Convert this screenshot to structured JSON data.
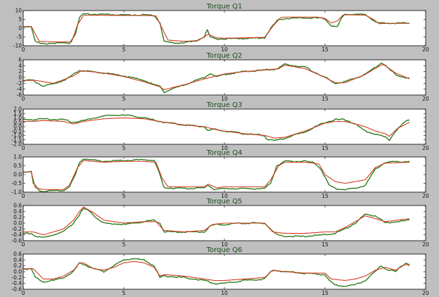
{
  "chart_data": [
    {
      "type": "line",
      "title": "Torque Q1",
      "xlim": [
        0,
        20
      ],
      "ylim": [
        -10,
        10
      ],
      "xticks": [
        0,
        5,
        10,
        15,
        20
      ],
      "yticks": [
        -10,
        -5,
        0,
        5,
        10
      ],
      "grid": false,
      "series": [
        {
          "color": "#2e7d1f",
          "x": [
            0,
            0.4,
            0.6,
            0.9,
            1.5,
            2.3,
            2.6,
            2.8,
            3.0,
            4.0,
            5.0,
            6.0,
            6.5,
            6.8,
            7.0,
            7.5,
            8.0,
            8.5,
            9.0,
            9.15,
            9.3,
            9.5,
            10.0,
            11.0,
            12.0,
            12.3,
            12.7,
            13.0,
            14.0,
            14.5,
            15.0,
            15.3,
            15.6,
            15.8,
            16.0,
            16.5,
            17.0,
            17.4,
            17.6,
            18.0,
            18.5,
            19.2
          ],
          "y": [
            1,
            1,
            -7.5,
            -9.0,
            -8.5,
            -8.5,
            -3.0,
            6.0,
            8.0,
            7.8,
            7.5,
            7.5,
            7.3,
            3.0,
            -7.5,
            -8.5,
            -8.2,
            -7.6,
            -5.0,
            -1.0,
            -5.0,
            -6.0,
            -6.0,
            -5.8,
            -5.5,
            0.0,
            5.0,
            5.5,
            5.8,
            5.8,
            5.5,
            1.5,
            0.5,
            5.0,
            8.0,
            7.8,
            7.7,
            4.5,
            3.0,
            3.0,
            2.8,
            3.0
          ]
        },
        {
          "color": "#d43a20",
          "x": [
            0,
            0.4,
            0.8,
            1.5,
            2.4,
            2.7,
            3.0,
            4.0,
            5.0,
            6.0,
            6.6,
            6.9,
            7.2,
            8.0,
            8.7,
            9.2,
            9.6,
            10.0,
            11.0,
            12.0,
            12.4,
            12.8,
            13.0,
            14.0,
            14.6,
            15.0,
            15.3,
            15.6,
            15.9,
            16.2,
            17.0,
            17.4,
            17.7,
            18.0,
            19.2
          ],
          "y": [
            1,
            1,
            -7.5,
            -7.8,
            -7.8,
            2.0,
            7.3,
            7.3,
            7.2,
            7.2,
            7.0,
            0.0,
            -6.8,
            -7.5,
            -7.0,
            -3.5,
            -5.5,
            -5.7,
            -5.5,
            -5.2,
            1.0,
            6.0,
            6.3,
            6.3,
            6.3,
            5.5,
            3.0,
            4.0,
            7.5,
            7.6,
            7.4,
            5.0,
            2.5,
            2.7,
            2.7
          ]
        }
      ]
    },
    {
      "type": "line",
      "title": "Torque Q2",
      "xlim": [
        0,
        20
      ],
      "ylim": [
        -6,
        6
      ],
      "xticks": [
        0,
        5,
        10,
        15,
        20
      ],
      "yticks": [
        -6,
        -4,
        -2,
        0,
        2,
        4,
        6
      ],
      "grid": false,
      "series": [
        {
          "color": "#2e7d1f",
          "x": [
            0,
            0.5,
            0.6,
            1.0,
            1.5,
            2.0,
            2.4,
            2.8,
            3.0,
            4.0,
            5.0,
            6.0,
            6.5,
            6.8,
            7.0,
            8.0,
            9.0,
            9.3,
            9.6,
            10.0,
            11.0,
            12.0,
            12.5,
            12.8,
            13.0,
            14.0,
            15.0,
            15.5,
            16.0,
            17.0,
            17.5,
            17.8,
            18.0,
            18.5,
            19.2
          ],
          "y": [
            -1.0,
            -1.0,
            -1.5,
            -3.0,
            -2.2,
            -1.0,
            0.5,
            2.5,
            2.2,
            1.5,
            0.5,
            -1.0,
            -2.5,
            -3.0,
            -5.0,
            -2.5,
            0.0,
            1.5,
            0.2,
            1.0,
            2.0,
            2.5,
            2.8,
            3.5,
            4.5,
            3.5,
            0.0,
            -2.0,
            -1.5,
            1.0,
            3.5,
            5.0,
            4.0,
            1.0,
            -0.5
          ]
        },
        {
          "color": "#d43a20",
          "x": [
            0,
            0.6,
            1.5,
            2.5,
            2.9,
            4.0,
            5.0,
            6.0,
            6.8,
            7.0,
            8.0,
            9.0,
            10.0,
            11.0,
            12.0,
            12.7,
            13.0,
            14.0,
            15.0,
            15.5,
            16.0,
            17.0,
            17.6,
            17.9,
            18.5,
            19.2
          ],
          "y": [
            -1.0,
            -1.0,
            -2.0,
            0.5,
            2.3,
            1.5,
            0.3,
            -1.5,
            -3.2,
            -4.2,
            -2.5,
            -0.5,
            1.2,
            2.0,
            2.5,
            3.0,
            4.2,
            3.0,
            0.0,
            -1.8,
            -1.8,
            1.0,
            3.5,
            4.5,
            1.5,
            -0.5
          ]
        }
      ]
    },
    {
      "type": "line",
      "title": "Torque Q3",
      "xlim": [
        0,
        20
      ],
      "ylim": [
        -2.0,
        2.0
      ],
      "xticks": [
        0,
        5,
        10,
        15,
        20
      ],
      "yticks": [
        -2.0,
        -1.5,
        -1.0,
        -0.5,
        0.0,
        0.5,
        1.0,
        1.5,
        2.0
      ],
      "grid": false,
      "series": [
        {
          "color": "#2e7d1f",
          "x": [
            0,
            0.5,
            1.0,
            2.0,
            2.5,
            3.0,
            3.5,
            4.0,
            4.5,
            5.0,
            5.5,
            6.0,
            7.0,
            8.0,
            9.0,
            9.2,
            9.5,
            10.0,
            11.0,
            12.0,
            12.1,
            12.5,
            13.0,
            14.0,
            15.0,
            15.5,
            16.0,
            16.5,
            17.0,
            17.5,
            18.0,
            18.2,
            18.5,
            19.0,
            19.2
          ],
          "y": [
            0.8,
            0.8,
            0.9,
            0.8,
            0.5,
            0.7,
            1.0,
            1.2,
            1.3,
            1.3,
            1.2,
            1.0,
            0.5,
            0.2,
            0.0,
            -0.5,
            -0.3,
            -0.5,
            -0.8,
            -1.0,
            -1.4,
            -1.6,
            -1.3,
            -0.6,
            0.5,
            0.8,
            0.8,
            0.3,
            -0.5,
            -0.8,
            -1.2,
            -1.5,
            -0.5,
            0.6,
            0.8
          ]
        },
        {
          "color": "#d43a20",
          "x": [
            0,
            0.5,
            1.0,
            2.0,
            2.5,
            3.0,
            4.0,
            5.0,
            6.0,
            7.0,
            8.0,
            9.0,
            9.5,
            10.0,
            11.0,
            12.0,
            12.5,
            13.0,
            14.0,
            15.0,
            15.5,
            16.0,
            17.0,
            17.5,
            18.0,
            18.2,
            18.6,
            19.2
          ],
          "y": [
            0.6,
            0.6,
            0.7,
            0.6,
            0.3,
            0.6,
            0.9,
            1.0,
            0.9,
            0.5,
            0.2,
            0.0,
            -0.3,
            -0.5,
            -0.8,
            -1.0,
            -1.3,
            -1.2,
            -0.5,
            0.4,
            0.6,
            0.6,
            0.0,
            -0.5,
            -0.8,
            -1.1,
            -0.2,
            0.5
          ]
        }
      ]
    },
    {
      "type": "line",
      "title": "Torque Q4",
      "xlim": [
        0,
        20
      ],
      "ylim": [
        -1.0,
        1.0
      ],
      "xticks": [
        0,
        5,
        10,
        15,
        20
      ],
      "yticks": [
        -1.0,
        -0.5,
        0.0,
        0.5,
        1.0
      ],
      "grid": false,
      "series": [
        {
          "color": "#2e7d1f",
          "x": [
            0,
            0.4,
            0.5,
            0.8,
            1.0,
            2.0,
            2.3,
            2.6,
            2.8,
            3.0,
            4.0,
            5.0,
            6.0,
            6.5,
            6.7,
            7.0,
            8.0,
            9.0,
            9.2,
            9.5,
            10.0,
            11.0,
            12.0,
            12.3,
            12.6,
            13.0,
            14.0,
            14.5,
            14.8,
            15.2,
            15.5,
            16.0,
            16.5,
            17.0,
            17.5,
            18.0,
            19.2
          ],
          "y": [
            0.15,
            0.15,
            -0.5,
            -0.9,
            -0.95,
            -0.9,
            -0.7,
            0.0,
            0.7,
            0.9,
            0.75,
            0.8,
            0.85,
            0.8,
            0.3,
            -0.75,
            -0.8,
            -0.75,
            -0.6,
            -0.85,
            -0.8,
            -0.8,
            -0.8,
            -0.5,
            0.5,
            0.75,
            0.75,
            0.65,
            0.3,
            -0.6,
            -0.8,
            -0.85,
            -0.8,
            -0.6,
            0.3,
            0.7,
            0.75
          ]
        },
        {
          "color": "#d43a20",
          "x": [
            0,
            0.4,
            0.6,
            1.0,
            2.0,
            2.3,
            2.7,
            3.0,
            4.0,
            5.0,
            6.0,
            6.6,
            6.9,
            7.2,
            8.0,
            9.0,
            9.2,
            9.6,
            10.0,
            11.0,
            12.0,
            12.3,
            12.7,
            13.0,
            14.0,
            14.7,
            15.0,
            15.5,
            16.0,
            17.0,
            17.5,
            18.0,
            19.2
          ],
          "y": [
            0.15,
            0.15,
            -0.75,
            -0.85,
            -0.85,
            -0.6,
            0.4,
            0.8,
            0.7,
            0.75,
            0.75,
            0.7,
            -0.2,
            -0.7,
            -0.7,
            -0.7,
            -0.55,
            -0.75,
            -0.7,
            -0.7,
            -0.7,
            -0.3,
            0.5,
            0.7,
            0.7,
            0.6,
            0.0,
            -0.4,
            -0.5,
            -0.3,
            0.4,
            0.65,
            0.7
          ]
        }
      ]
    },
    {
      "type": "line",
      "title": "Torque Q5",
      "xlim": [
        0,
        20
      ],
      "ylim": [
        -0.6,
        0.6
      ],
      "xticks": [
        0,
        5,
        10,
        15,
        20
      ],
      "yticks": [
        -0.6,
        -0.4,
        -0.2,
        0.0,
        0.2,
        0.4,
        0.6
      ],
      "grid": false,
      "series": [
        {
          "color": "#2e7d1f",
          "x": [
            0,
            0.4,
            0.6,
            1.0,
            2.0,
            2.5,
            2.8,
            3.0,
            3.3,
            3.6,
            4.0,
            5.0,
            6.0,
            6.5,
            6.8,
            7.0,
            8.0,
            9.0,
            9.3,
            9.5,
            10.0,
            11.0,
            12.0,
            12.3,
            12.6,
            13.0,
            14.0,
            15.0,
            15.5,
            16.0,
            16.5,
            17.0,
            17.5,
            18.0,
            19.2
          ],
          "y": [
            -0.35,
            -0.35,
            -0.45,
            -0.5,
            -0.3,
            0.0,
            0.3,
            0.5,
            0.4,
            0.2,
            0.0,
            -0.05,
            0.05,
            0.1,
            0.0,
            -0.3,
            -0.3,
            -0.3,
            -0.1,
            -0.05,
            -0.05,
            0.0,
            0.0,
            -0.2,
            -0.4,
            -0.45,
            -0.45,
            -0.4,
            -0.35,
            -0.2,
            0.0,
            0.3,
            0.25,
            0.0,
            0.1
          ]
        },
        {
          "color": "#d43a20",
          "x": [
            0,
            0.5,
            1.0,
            2.0,
            2.5,
            2.8,
            3.0,
            3.5,
            4.0,
            5.0,
            6.0,
            6.6,
            7.0,
            8.0,
            9.0,
            9.4,
            10.0,
            11.0,
            12.0,
            12.4,
            13.0,
            14.0,
            15.0,
            15.5,
            16.0,
            16.5,
            17.0,
            17.5,
            18.0,
            19.2
          ],
          "y": [
            -0.3,
            -0.3,
            -0.4,
            -0.2,
            0.1,
            0.4,
            0.55,
            0.35,
            0.1,
            0.0,
            0.05,
            0.05,
            -0.25,
            -0.3,
            -0.25,
            -0.05,
            0.0,
            0.0,
            0.0,
            -0.3,
            -0.35,
            -0.35,
            -0.3,
            -0.3,
            -0.15,
            0.05,
            0.25,
            0.15,
            0.05,
            0.15
          ]
        }
      ]
    },
    {
      "type": "line",
      "title": "Torque Q6",
      "xlim": [
        0,
        20
      ],
      "ylim": [
        -0.6,
        0.6
      ],
      "xticks": [
        0,
        5,
        10,
        15,
        20
      ],
      "yticks": [
        -0.6,
        -0.4,
        -0.2,
        0.0,
        0.2,
        0.4,
        0.6
      ],
      "grid": false,
      "series": [
        {
          "color": "#2e7d1f",
          "x": [
            0,
            0.4,
            0.6,
            1.0,
            1.5,
            2.0,
            2.5,
            2.8,
            3.0,
            3.5,
            4.0,
            4.5,
            5.0,
            5.5,
            6.0,
            6.5,
            6.8,
            7.0,
            8.0,
            9.0,
            9.5,
            10.0,
            11.0,
            12.0,
            12.3,
            12.5,
            13.0,
            14.0,
            15.0,
            15.2,
            15.5,
            16.0,
            16.5,
            17.0,
            17.5,
            17.8,
            18.0,
            18.5,
            19.0,
            19.2
          ],
          "y": [
            0.1,
            0.1,
            -0.2,
            -0.35,
            -0.3,
            -0.2,
            0.0,
            0.3,
            0.25,
            0.1,
            0.0,
            0.2,
            0.4,
            0.45,
            0.4,
            0.2,
            -0.2,
            -0.15,
            -0.2,
            -0.3,
            -0.4,
            -0.4,
            -0.3,
            -0.25,
            0.0,
            0.05,
            0.0,
            -0.05,
            -0.1,
            -0.3,
            -0.45,
            -0.5,
            -0.45,
            -0.3,
            0.0,
            0.2,
            0.1,
            0.0,
            0.3,
            0.25
          ]
        },
        {
          "color": "#d43a20",
          "x": [
            0,
            0.5,
            1.0,
            1.5,
            2.0,
            2.5,
            2.8,
            3.0,
            3.5,
            4.0,
            4.5,
            5.0,
            5.5,
            6.0,
            6.5,
            6.8,
            7.0,
            8.0,
            9.0,
            9.5,
            10.0,
            11.0,
            12.0,
            12.4,
            13.0,
            14.0,
            15.0,
            15.3,
            16.0,
            16.5,
            17.0,
            17.5,
            18.0,
            18.5,
            19.0,
            19.2
          ],
          "y": [
            0.1,
            0.1,
            -0.25,
            -0.25,
            -0.15,
            0.05,
            0.3,
            0.3,
            0.1,
            0.05,
            0.15,
            0.3,
            0.35,
            0.3,
            0.15,
            -0.15,
            -0.1,
            -0.15,
            -0.25,
            -0.3,
            -0.3,
            -0.25,
            -0.2,
            0.05,
            0.0,
            -0.05,
            -0.05,
            -0.25,
            -0.3,
            -0.25,
            -0.15,
            0.05,
            0.15,
            0.05,
            0.25,
            0.2
          ]
        }
      ]
    }
  ]
}
